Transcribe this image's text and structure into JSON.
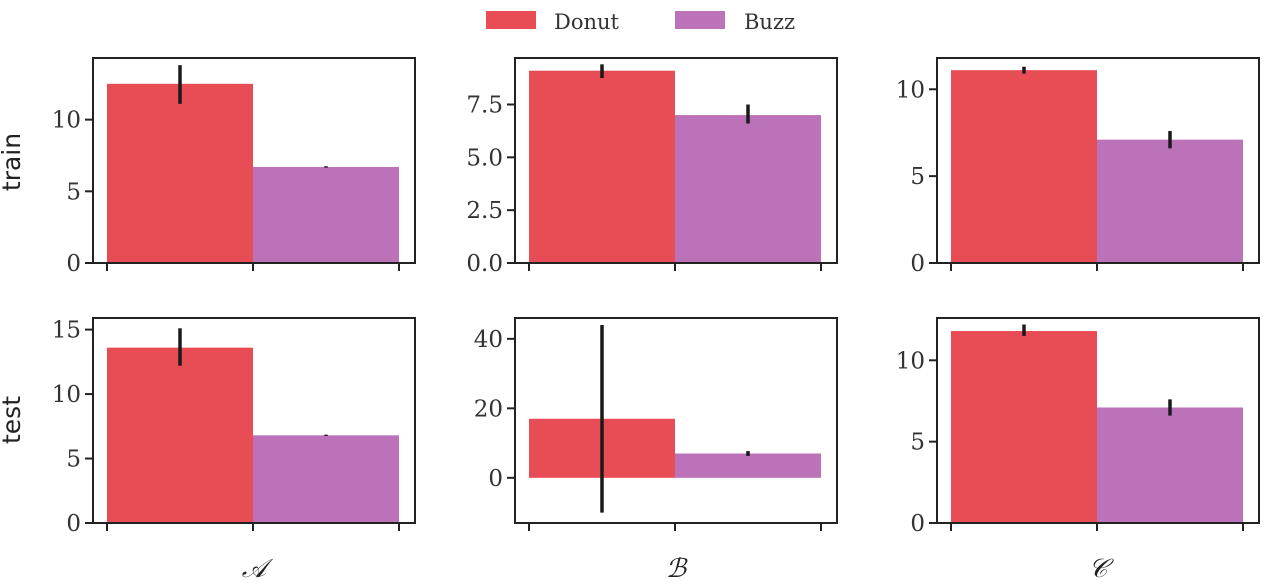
{
  "chart_data": {
    "type": "bar",
    "series": [
      {
        "name": "Donut",
        "color": "#e84c55"
      },
      {
        "name": "Buzz",
        "color": "#bc72b9"
      }
    ],
    "row_labels": [
      "train",
      "test"
    ],
    "col_labels": [
      "𝒜",
      "ℬ",
      "𝒞"
    ],
    "legend_position": "top-center",
    "panels": [
      {
        "row": "train",
        "col": "𝒜",
        "ylim": [
          0,
          14.3
        ],
        "yticks": [
          0,
          5,
          10
        ],
        "ytick_labels": [
          "0",
          "5",
          "10"
        ],
        "values": [
          12.5,
          6.7
        ],
        "errors": [
          [
            11.1,
            13.8
          ],
          [
            6.65,
            6.75
          ]
        ]
      },
      {
        "row": "train",
        "col": "ℬ",
        "ylim": [
          0,
          9.7
        ],
        "yticks": [
          0,
          2.5,
          5,
          7.5
        ],
        "ytick_labels": [
          "0.0",
          "2.5",
          "5.0",
          "7.5"
        ],
        "values": [
          9.1,
          7.0
        ],
        "errors": [
          [
            8.75,
            9.4
          ],
          [
            6.6,
            7.5
          ]
        ]
      },
      {
        "row": "train",
        "col": "𝒞",
        "ylim": [
          0,
          11.8
        ],
        "yticks": [
          0,
          5,
          10
        ],
        "ytick_labels": [
          "0",
          "5",
          "10"
        ],
        "values": [
          11.1,
          7.1
        ],
        "errors": [
          [
            10.9,
            11.3
          ],
          [
            6.6,
            7.6
          ]
        ]
      },
      {
        "row": "test",
        "col": "𝒜",
        "ylim": [
          0,
          15.9
        ],
        "yticks": [
          0,
          5,
          10,
          15
        ],
        "ytick_labels": [
          "0",
          "5",
          "10",
          "15"
        ],
        "values": [
          13.6,
          6.8
        ],
        "errors": [
          [
            12.2,
            15.1
          ],
          [
            6.75,
            6.85
          ]
        ]
      },
      {
        "row": "test",
        "col": "ℬ",
        "ylim": [
          -13,
          46
        ],
        "yticks": [
          0,
          20,
          40
        ],
        "ytick_labels": [
          "0",
          "20",
          "40"
        ],
        "values": [
          17,
          7
        ],
        "errors": [
          [
            -10,
            44
          ],
          [
            6.3,
            7.7
          ]
        ]
      },
      {
        "row": "test",
        "col": "𝒞",
        "ylim": [
          0,
          12.6
        ],
        "yticks": [
          0,
          5,
          10
        ],
        "ytick_labels": [
          "0",
          "5",
          "10"
        ],
        "values": [
          11.8,
          7.1
        ],
        "errors": [
          [
            11.5,
            12.2
          ],
          [
            6.6,
            7.6
          ]
        ]
      }
    ]
  }
}
